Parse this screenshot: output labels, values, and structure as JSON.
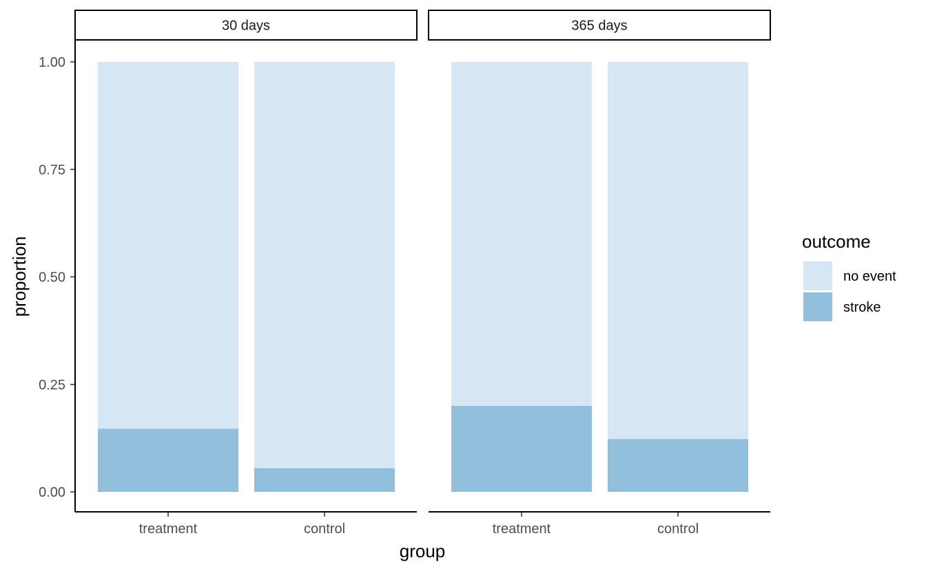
{
  "chart_data": {
    "type": "bar",
    "stacked": true,
    "xlabel": "group",
    "ylabel": "proportion",
    "ylim": [
      0,
      1
    ],
    "yticks": [
      {
        "value": 0,
        "label": "0.00"
      },
      {
        "value": 0.25,
        "label": "0.25"
      },
      {
        "value": 0.5,
        "label": "0.50"
      },
      {
        "value": 0.75,
        "label": "0.75"
      },
      {
        "value": 1,
        "label": "1.00"
      }
    ],
    "legend": {
      "title": "outcome",
      "placement": "right",
      "entries": [
        {
          "label": "no event",
          "color": "#d6e6f4"
        },
        {
          "label": "stroke",
          "color": "#91bfdb"
        }
      ]
    },
    "panels": [
      {
        "title": "30 days",
        "categories": [
          "treatment",
          "control"
        ],
        "series": [
          {
            "name": "stroke",
            "values": [
              0.147,
              0.055
            ]
          },
          {
            "name": "no event",
            "values": [
              0.853,
              0.945
            ]
          }
        ]
      },
      {
        "title": "365 days",
        "categories": [
          "treatment",
          "control"
        ],
        "series": [
          {
            "name": "stroke",
            "values": [
              0.2,
              0.123
            ]
          },
          {
            "name": "no event",
            "values": [
              0.8,
              0.877
            ]
          }
        ]
      }
    ]
  }
}
